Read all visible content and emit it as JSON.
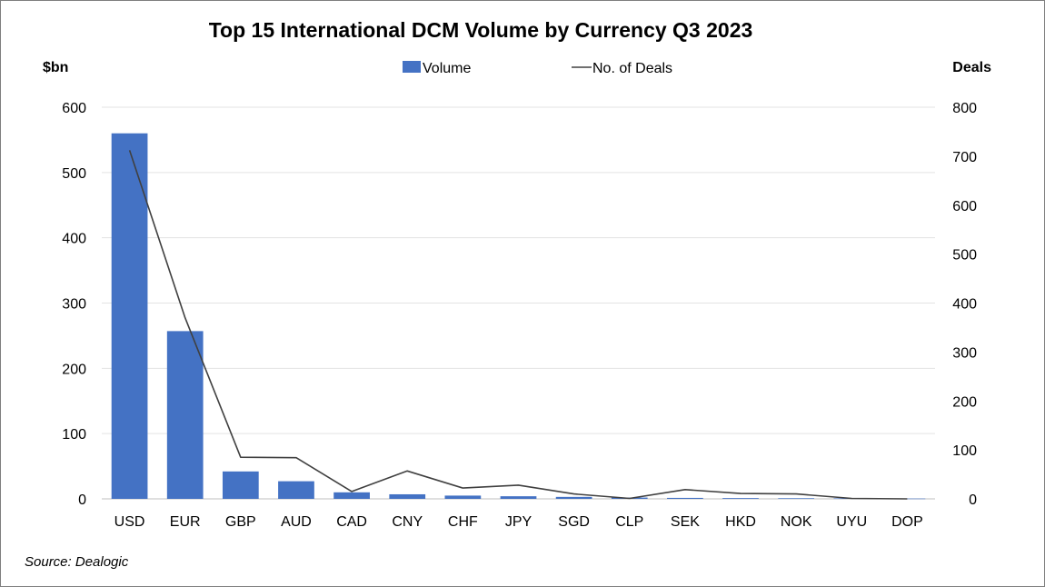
{
  "chart_data": {
    "type": "bar",
    "title": "Top 15 International DCM Volume by Currency Q3 2023",
    "ylabel": "$bn",
    "y2label": "Deals",
    "ylim": [
      0,
      600
    ],
    "y2lim": [
      0,
      800
    ],
    "yticks": [
      "0",
      "100",
      "200",
      "300",
      "400",
      "500",
      "600"
    ],
    "y2ticks": [
      "0",
      "100",
      "200",
      "300",
      "400",
      "500",
      "600",
      "700",
      "800"
    ],
    "grid": true,
    "legend_position": "top-center",
    "categories": [
      "USD",
      "EUR",
      "GBP",
      "AUD",
      "CAD",
      "CNY",
      "CHF",
      "JPY",
      "SGD",
      "CLP",
      "SEK",
      "HKD",
      "NOK",
      "UYU",
      "DOP"
    ],
    "series": [
      {
        "name": "Volume",
        "type": "bar",
        "axis": "left",
        "color": "#4472c4",
        "values": [
          560,
          257,
          42,
          27,
          10,
          7,
          5,
          4,
          3,
          2,
          1.5,
          1.2,
          1,
          0.8,
          0.5
        ]
      },
      {
        "name": "No. of Deals",
        "type": "line",
        "axis": "right",
        "color": "#404040",
        "values": [
          712,
          370,
          85,
          84,
          15,
          57,
          22,
          28,
          10,
          1,
          19,
          11,
          10,
          1,
          0
        ]
      }
    ],
    "source": "Source: Dealogic"
  }
}
